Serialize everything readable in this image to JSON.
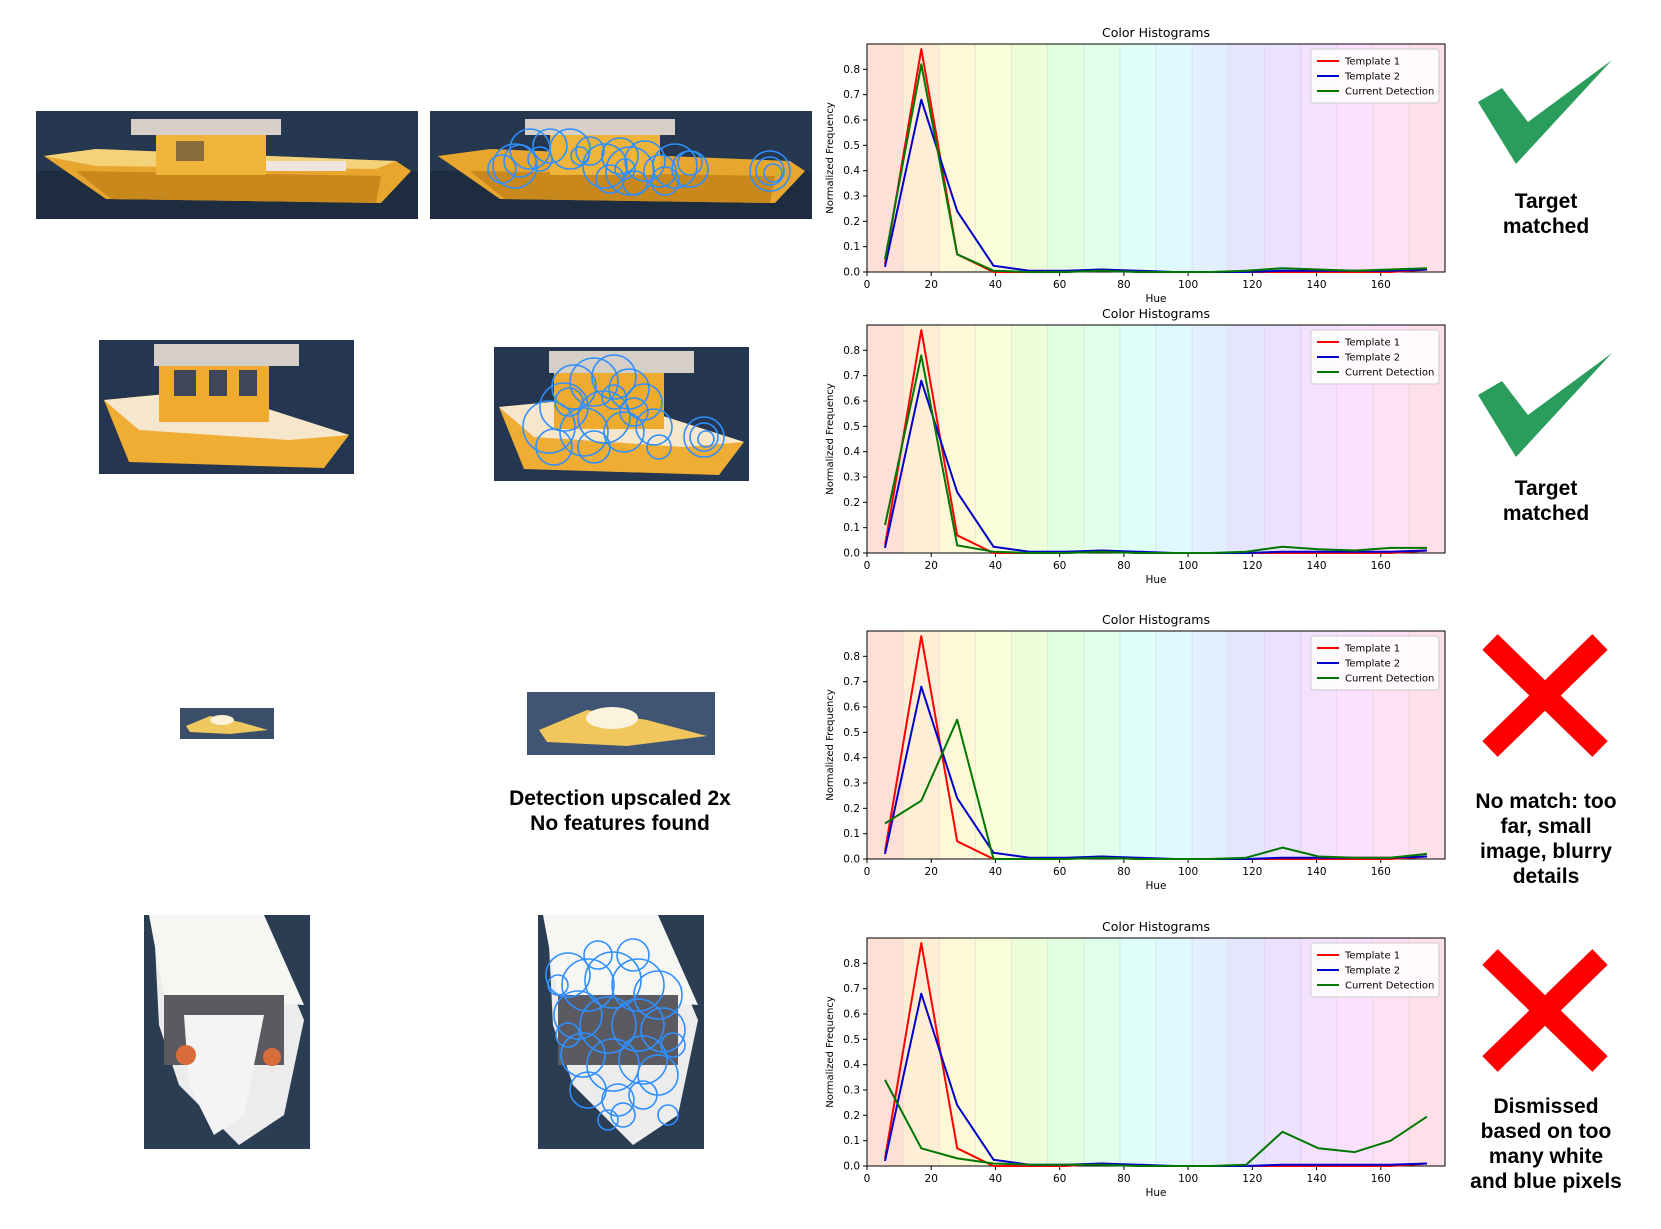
{
  "rows": [
    {
      "verdict": "matched",
      "verdict_lines": [
        "Target",
        "matched"
      ],
      "note_lines": [],
      "chart_data": {
        "type": "line",
        "title": "Color Histograms",
        "xlabel": "Hue",
        "ylabel": "Normalized Frequency",
        "xlim": [
          0,
          180
        ],
        "ylim": [
          0,
          0.9
        ],
        "xticks": [
          0,
          20,
          40,
          60,
          80,
          100,
          120,
          140,
          160
        ],
        "yticks": [
          0.0,
          0.1,
          0.2,
          0.3,
          0.4,
          0.5,
          0.6,
          0.7,
          0.8
        ],
        "legend": "top-right",
        "grid": false,
        "x": [
          5.6,
          16.9,
          28.1,
          39.4,
          50.6,
          61.9,
          73.1,
          84.4,
          95.6,
          106.9,
          118.1,
          129.4,
          140.6,
          151.9,
          163.1,
          174.4
        ],
        "series": [
          {
            "name": "Template 1",
            "color": "#ff0000",
            "values": [
              0.03,
              0.88,
              0.07,
              0.0,
              0.0,
              0.0,
              0.01,
              0.0,
              0.0,
              0.0,
              0.0,
              0.0,
              0.0,
              0.0,
              0.0,
              0.01
            ]
          },
          {
            "name": "Template 2",
            "color": "#0000cc",
            "values": [
              0.02,
              0.68,
              0.24,
              0.025,
              0.005,
              0.005,
              0.01,
              0.005,
              0.0,
              0.0,
              0.0,
              0.005,
              0.005,
              0.005,
              0.005,
              0.01
            ]
          },
          {
            "name": "Current Detection",
            "color": "#007700",
            "values": [
              0.05,
              0.82,
              0.07,
              0.005,
              0.0,
              0.0,
              0.005,
              0.0,
              0.0,
              0.0,
              0.005,
              0.015,
              0.01,
              0.005,
              0.01,
              0.015
            ]
          }
        ]
      }
    },
    {
      "verdict": "matched",
      "verdict_lines": [
        "Target",
        "matched"
      ],
      "note_lines": [],
      "chart_data": {
        "type": "line",
        "title": "Color Histograms",
        "xlabel": "Hue",
        "ylabel": "Normalized Frequency",
        "xlim": [
          0,
          180
        ],
        "ylim": [
          0,
          0.9
        ],
        "xticks": [
          0,
          20,
          40,
          60,
          80,
          100,
          120,
          140,
          160
        ],
        "yticks": [
          0.0,
          0.1,
          0.2,
          0.3,
          0.4,
          0.5,
          0.6,
          0.7,
          0.8
        ],
        "legend": "top-right",
        "grid": false,
        "x": [
          5.6,
          16.9,
          28.1,
          39.4,
          50.6,
          61.9,
          73.1,
          84.4,
          95.6,
          106.9,
          118.1,
          129.4,
          140.6,
          151.9,
          163.1,
          174.4
        ],
        "series": [
          {
            "name": "Template 1",
            "color": "#ff0000",
            "values": [
              0.03,
              0.88,
              0.07,
              0.0,
              0.0,
              0.0,
              0.01,
              0.0,
              0.0,
              0.0,
              0.0,
              0.0,
              0.0,
              0.0,
              0.0,
              0.01
            ]
          },
          {
            "name": "Template 2",
            "color": "#0000cc",
            "values": [
              0.02,
              0.68,
              0.24,
              0.025,
              0.005,
              0.005,
              0.01,
              0.005,
              0.0,
              0.0,
              0.0,
              0.005,
              0.005,
              0.005,
              0.005,
              0.01
            ]
          },
          {
            "name": "Current Detection",
            "color": "#007700",
            "values": [
              0.11,
              0.78,
              0.03,
              0.005,
              0.0,
              0.0,
              0.005,
              0.0,
              0.0,
              0.0,
              0.005,
              0.025,
              0.015,
              0.01,
              0.02,
              0.02
            ]
          }
        ]
      }
    },
    {
      "verdict": "rejected",
      "verdict_lines": [
        "No match: too",
        "far, small",
        "image, blurry",
        "details"
      ],
      "note_lines": [
        "Detection upscaled 2x",
        "No features found"
      ],
      "chart_data": {
        "type": "line",
        "title": "Color Histograms",
        "xlabel": "Hue",
        "ylabel": "Normalized Frequency",
        "xlim": [
          0,
          180
        ],
        "ylim": [
          0,
          0.9
        ],
        "xticks": [
          0,
          20,
          40,
          60,
          80,
          100,
          120,
          140,
          160
        ],
        "yticks": [
          0.0,
          0.1,
          0.2,
          0.3,
          0.4,
          0.5,
          0.6,
          0.7,
          0.8
        ],
        "legend": "top-right",
        "grid": false,
        "x": [
          5.6,
          16.9,
          28.1,
          39.4,
          50.6,
          61.9,
          73.1,
          84.4,
          95.6,
          106.9,
          118.1,
          129.4,
          140.6,
          151.9,
          163.1,
          174.4
        ],
        "series": [
          {
            "name": "Template 1",
            "color": "#ff0000",
            "values": [
              0.03,
              0.88,
              0.07,
              0.0,
              0.0,
              0.0,
              0.01,
              0.0,
              0.0,
              0.0,
              0.0,
              0.0,
              0.0,
              0.0,
              0.0,
              0.01
            ]
          },
          {
            "name": "Template 2",
            "color": "#0000cc",
            "values": [
              0.02,
              0.68,
              0.24,
              0.025,
              0.005,
              0.005,
              0.01,
              0.005,
              0.0,
              0.0,
              0.0,
              0.005,
              0.005,
              0.005,
              0.005,
              0.01
            ]
          },
          {
            "name": "Current Detection",
            "color": "#007700",
            "values": [
              0.14,
              0.23,
              0.55,
              0.0,
              0.0,
              0.0,
              0.005,
              0.0,
              0.0,
              0.0,
              0.005,
              0.045,
              0.01,
              0.005,
              0.005,
              0.02
            ]
          }
        ]
      }
    },
    {
      "verdict": "rejected",
      "verdict_lines": [
        "Dismissed",
        "based on too",
        "many white",
        "and blue pixels"
      ],
      "note_lines": [],
      "chart_data": {
        "type": "line",
        "title": "Color Histograms",
        "xlabel": "Hue",
        "ylabel": "Normalized Frequency",
        "xlim": [
          0,
          180
        ],
        "ylim": [
          0,
          0.9
        ],
        "xticks": [
          0,
          20,
          40,
          60,
          80,
          100,
          120,
          140,
          160
        ],
        "yticks": [
          0.0,
          0.1,
          0.2,
          0.3,
          0.4,
          0.5,
          0.6,
          0.7,
          0.8
        ],
        "legend": "top-right",
        "grid": false,
        "x": [
          5.6,
          16.9,
          28.1,
          39.4,
          50.6,
          61.9,
          73.1,
          84.4,
          95.6,
          106.9,
          118.1,
          129.4,
          140.6,
          151.9,
          163.1,
          174.4
        ],
        "series": [
          {
            "name": "Template 1",
            "color": "#ff0000",
            "values": [
              0.03,
              0.88,
              0.07,
              0.0,
              0.0,
              0.0,
              0.01,
              0.0,
              0.0,
              0.0,
              0.0,
              0.0,
              0.0,
              0.0,
              0.0,
              0.01
            ]
          },
          {
            "name": "Template 2",
            "color": "#0000cc",
            "values": [
              0.02,
              0.68,
              0.24,
              0.025,
              0.005,
              0.005,
              0.01,
              0.005,
              0.0,
              0.0,
              0.0,
              0.005,
              0.005,
              0.005,
              0.005,
              0.01
            ]
          },
          {
            "name": "Current Detection",
            "color": "#007700",
            "values": [
              0.34,
              0.07,
              0.03,
              0.01,
              0.005,
              0.005,
              0.005,
              0.0,
              0.0,
              0.0,
              0.005,
              0.135,
              0.07,
              0.055,
              0.1,
              0.195
            ]
          }
        ]
      }
    }
  ],
  "colors": {
    "check": "#2a9d5c",
    "cross": "#ff0000",
    "keypoint": "#2f8fff"
  },
  "hue_bands": [
    "#ffd5c8",
    "#ffe8c8",
    "#fff6c8",
    "#f8ffcc",
    "#e6ffcc",
    "#d8ffd4",
    "#d4ffe4",
    "#d4fff6",
    "#d6f6ff",
    "#d8eaff",
    "#dcdcff",
    "#e6d8ff",
    "#f0d6ff",
    "#fbd6ff",
    "#ffd6f0",
    "#ffd6e0"
  ]
}
